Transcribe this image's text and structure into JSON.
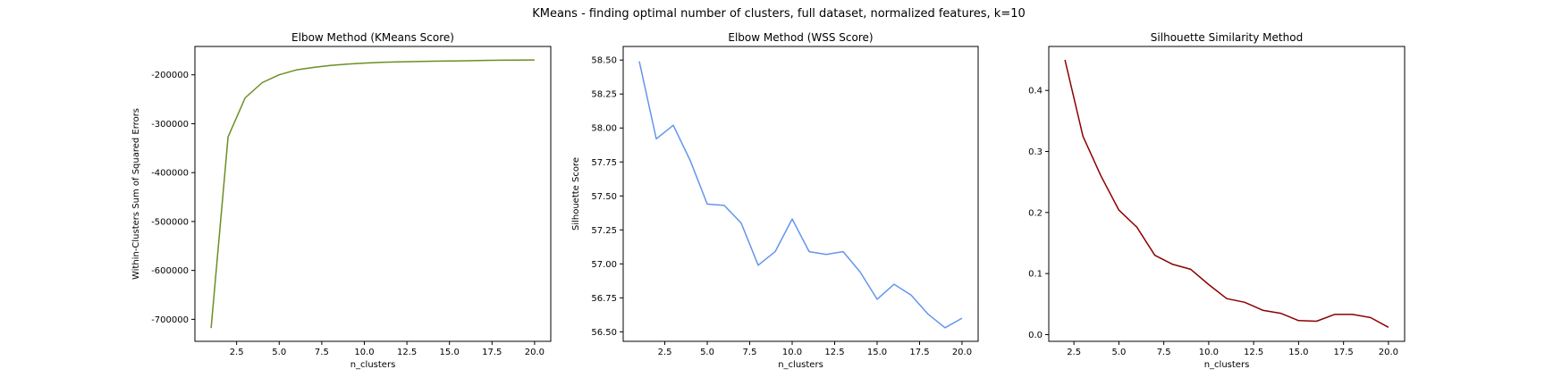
{
  "suptitle": "KMeans - finding optimal number of clusters, full dataset, normalized features, k=10",
  "chart_data": [
    {
      "type": "line",
      "title": "Elbow Method (KMeans Score)",
      "xlabel": "n_clusters",
      "ylabel": "Within-Clusters Sum of Squared Errors",
      "xlim": [
        0.05,
        20.95
      ],
      "ylim": [
        -745000,
        -142000
      ],
      "xticks": [
        "2.5",
        "5.0",
        "7.5",
        "10.0",
        "12.5",
        "15.0",
        "17.5",
        "20.0"
      ],
      "yticks": [
        "-200000",
        "-300000",
        "-400000",
        "-500000",
        "-600000",
        "-700000"
      ],
      "color": "#6b8e23",
      "series": [
        {
          "x": [
            1,
            2,
            3,
            4,
            5,
            6,
            7,
            8,
            9,
            10,
            11,
            12,
            13,
            14,
            15,
            16,
            17,
            18,
            19,
            20
          ],
          "y": [
            -718000,
            -327000,
            -247000,
            -216000,
            -200000,
            -190000,
            -185000,
            -181000,
            -178000,
            -176000,
            -174500,
            -173500,
            -172800,
            -172200,
            -171700,
            -171300,
            -170500,
            -170200,
            -169900,
            -169600
          ]
        }
      ]
    },
    {
      "type": "line",
      "title": "Elbow Method (WSS Score)",
      "xlabel": "n_clusters",
      "ylabel": "Silhouette Score",
      "xlim": [
        0.05,
        20.95
      ],
      "ylim": [
        56.43,
        58.6
      ],
      "xticks": [
        "2.5",
        "5.0",
        "7.5",
        "10.0",
        "12.5",
        "15.0",
        "17.5",
        "20.0"
      ],
      "yticks": [
        "56.50",
        "56.75",
        "57.00",
        "57.25",
        "57.50",
        "57.75",
        "58.00",
        "58.25",
        "58.50"
      ],
      "color": "#6495ed",
      "series": [
        {
          "x": [
            1,
            2,
            3,
            4,
            5,
            6,
            7,
            8,
            9,
            10,
            11,
            12,
            13,
            14,
            15,
            16,
            17,
            18,
            19,
            20
          ],
          "y": [
            58.49,
            57.92,
            58.02,
            57.76,
            57.44,
            57.43,
            57.3,
            56.99,
            57.09,
            57.33,
            57.09,
            57.07,
            57.09,
            56.94,
            56.74,
            56.85,
            56.77,
            56.63,
            56.53,
            56.6
          ]
        }
      ]
    },
    {
      "type": "line",
      "title": "Silhouette Similarity Method",
      "xlabel": "n_clusters",
      "ylabel": "",
      "xlim": [
        1.1,
        20.9
      ],
      "ylim": [
        -0.011,
        0.472
      ],
      "xticks": [
        "2.5",
        "5.0",
        "7.5",
        "10.0",
        "12.5",
        "15.0",
        "17.5",
        "20.0"
      ],
      "yticks": [
        "0.0",
        "0.1",
        "0.2",
        "0.3",
        "0.4"
      ],
      "color": "#8b0000",
      "series": [
        {
          "x": [
            2,
            3,
            4,
            5,
            6,
            7,
            8,
            9,
            10,
            11,
            12,
            13,
            14,
            15,
            16,
            17,
            18,
            19,
            20
          ],
          "y": [
            0.45,
            0.325,
            0.26,
            0.204,
            0.176,
            0.13,
            0.115,
            0.107,
            0.082,
            0.059,
            0.053,
            0.04,
            0.035,
            0.023,
            0.022,
            0.033,
            0.033,
            0.028,
            0.012
          ]
        }
      ]
    }
  ]
}
